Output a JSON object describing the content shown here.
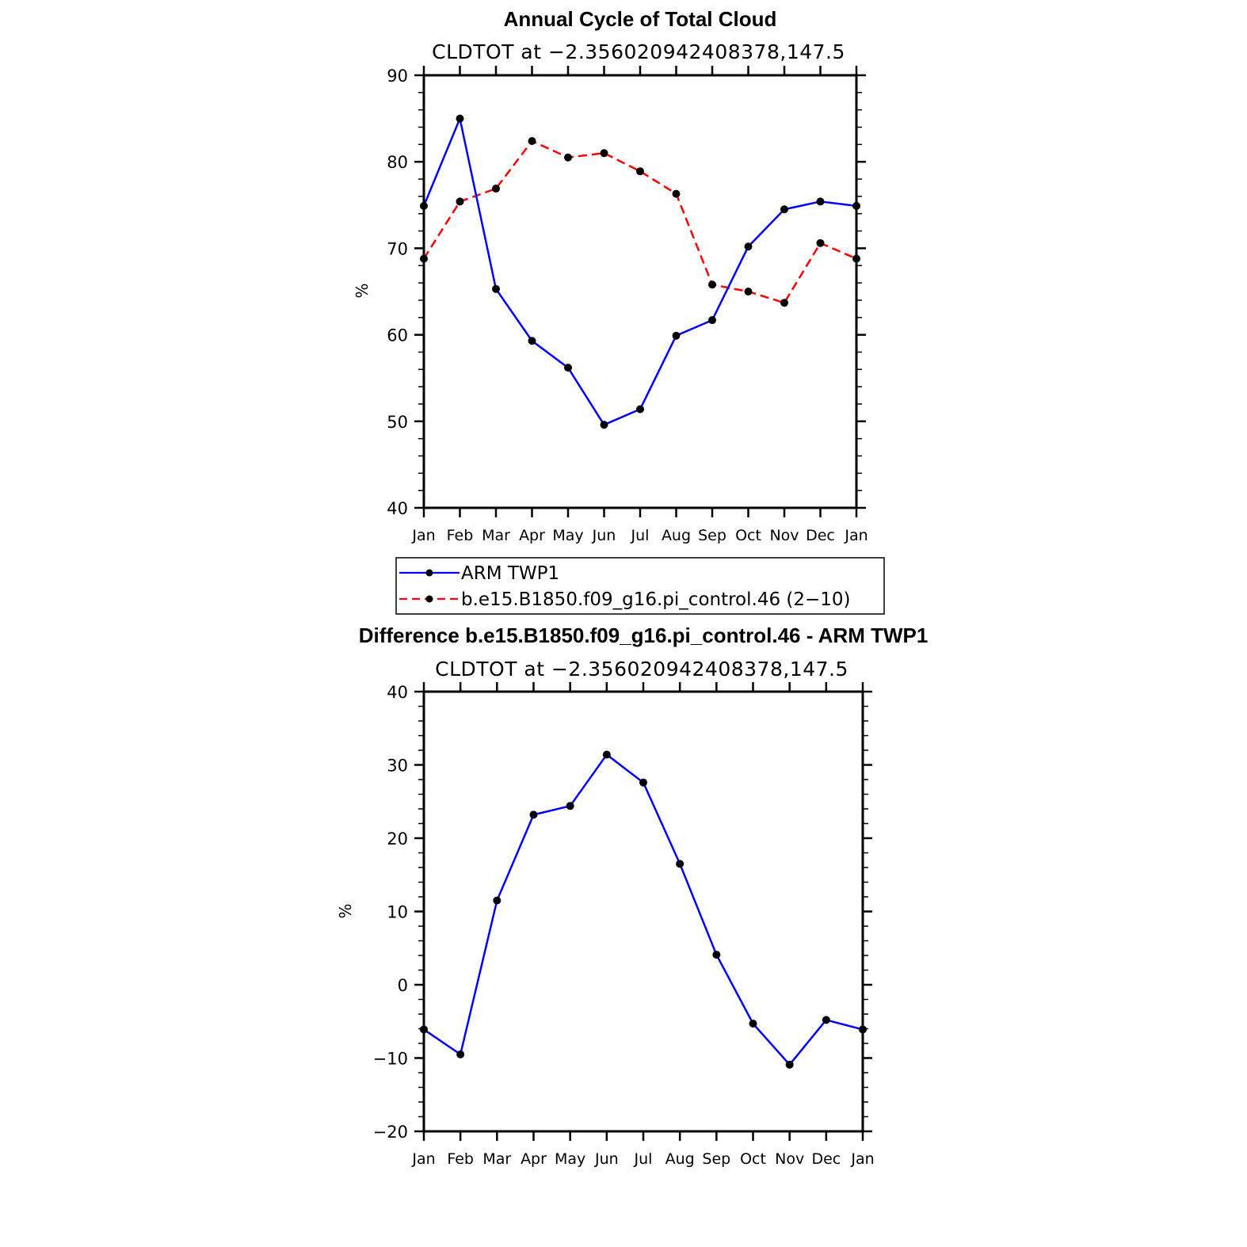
{
  "chart_data": [
    {
      "type": "line",
      "title": "Annual Cycle of Total Cloud",
      "subtitle": "CLDTOT at −2.356020942408378,147.5",
      "xlabel": "",
      "ylabel": "%",
      "ylim": [
        40,
        90
      ],
      "y_ticks": [
        "90",
        "80",
        "70",
        "60",
        "50",
        "40"
      ],
      "categories": [
        "Jan",
        "Feb",
        "Mar",
        "Apr",
        "May",
        "Jun",
        "Jul",
        "Aug",
        "Sep",
        "Oct",
        "Nov",
        "Dec",
        "Jan"
      ],
      "series": [
        {
          "name": "ARM TWP1",
          "color": "#0000ff",
          "style": "solid",
          "values": [
            74.9,
            85.0,
            65.3,
            59.3,
            56.2,
            49.6,
            51.4,
            59.9,
            61.7,
            70.2,
            74.5,
            75.4,
            74.9
          ]
        },
        {
          "name": "b.e15.B1850.f09_g16.pi_control.46 (2−10)",
          "color": "#ff0000",
          "style": "dashed",
          "values": [
            68.8,
            75.4,
            76.9,
            82.4,
            80.5,
            81.0,
            78.9,
            76.3,
            65.8,
            65.0,
            63.7,
            70.6,
            68.8
          ]
        }
      ],
      "legend": "below"
    },
    {
      "type": "line",
      "title": "Difference b.e15.B1850.f09_g16.pi_control.46 - ARM TWP1",
      "subtitle": "CLDTOT at −2.356020942408378,147.5",
      "xlabel": "",
      "ylabel": "%",
      "ylim": [
        -20,
        40
      ],
      "y_ticks": [
        "40",
        "30",
        "20",
        "10",
        "0",
        "−10",
        "−20"
      ],
      "categories": [
        "Jan",
        "Feb",
        "Mar",
        "Apr",
        "May",
        "Jun",
        "Jul",
        "Aug",
        "Sep",
        "Oct",
        "Nov",
        "Dec",
        "Jan"
      ],
      "series": [
        {
          "name": "Difference",
          "color": "#0000ff",
          "style": "solid",
          "values": [
            -6.1,
            -9.5,
            11.5,
            23.2,
            24.4,
            31.4,
            27.6,
            16.5,
            4.1,
            -5.3,
            -10.9,
            -4.8,
            -6.1
          ]
        }
      ]
    }
  ]
}
